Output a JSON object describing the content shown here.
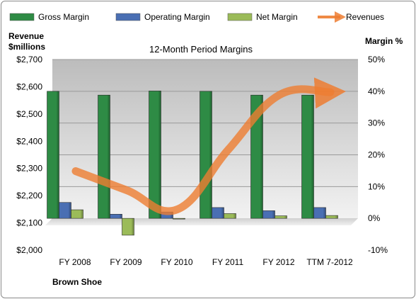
{
  "chart_data": {
    "type": "bar",
    "title": "12-Month Period Margins",
    "categories": [
      "FY 2008",
      "FY 2009",
      "FY 2010",
      "FY 2011",
      "FY 2012",
      "TTM 7-2012"
    ],
    "series": [
      {
        "name": "Gross Margin",
        "type": "bar",
        "axis": "right",
        "values": [
          40.0,
          38.8,
          40.1,
          40.0,
          38.8,
          38.8
        ],
        "color": "#2e8b45"
      },
      {
        "name": "Operating Margin",
        "type": "bar",
        "axis": "right",
        "values": [
          5.0,
          1.3,
          2.0,
          3.4,
          2.4,
          3.4
        ],
        "color": "#4a6fb3"
      },
      {
        "name": "Net Margin",
        "type": "bar",
        "axis": "right",
        "values": [
          2.7,
          -5.3,
          -0.2,
          1.5,
          0.8,
          0.9
        ],
        "color": "#9bbb59"
      },
      {
        "name": "Revenues",
        "type": "line",
        "axis": "left",
        "values": [
          2290,
          2220,
          2150,
          2370,
          2570,
          2580
        ],
        "color": "#ed7d31"
      }
    ],
    "left_axis": {
      "label": "Revenue\n$millions",
      "ylim": [
        2000,
        2700
      ],
      "ticks": [
        "$2,000",
        "$2,100",
        "$2,200",
        "$2,300",
        "$2,400",
        "$2,500",
        "$2,600",
        "$2,700"
      ]
    },
    "right_axis": {
      "label": "Margin %",
      "ylim": [
        -10,
        50
      ],
      "ticks": [
        "-10%",
        "0%",
        "10%",
        "20%",
        "30%",
        "40%",
        "50%"
      ]
    },
    "legend_position": "top",
    "grid": true,
    "footer": "Brown Shoe"
  }
}
